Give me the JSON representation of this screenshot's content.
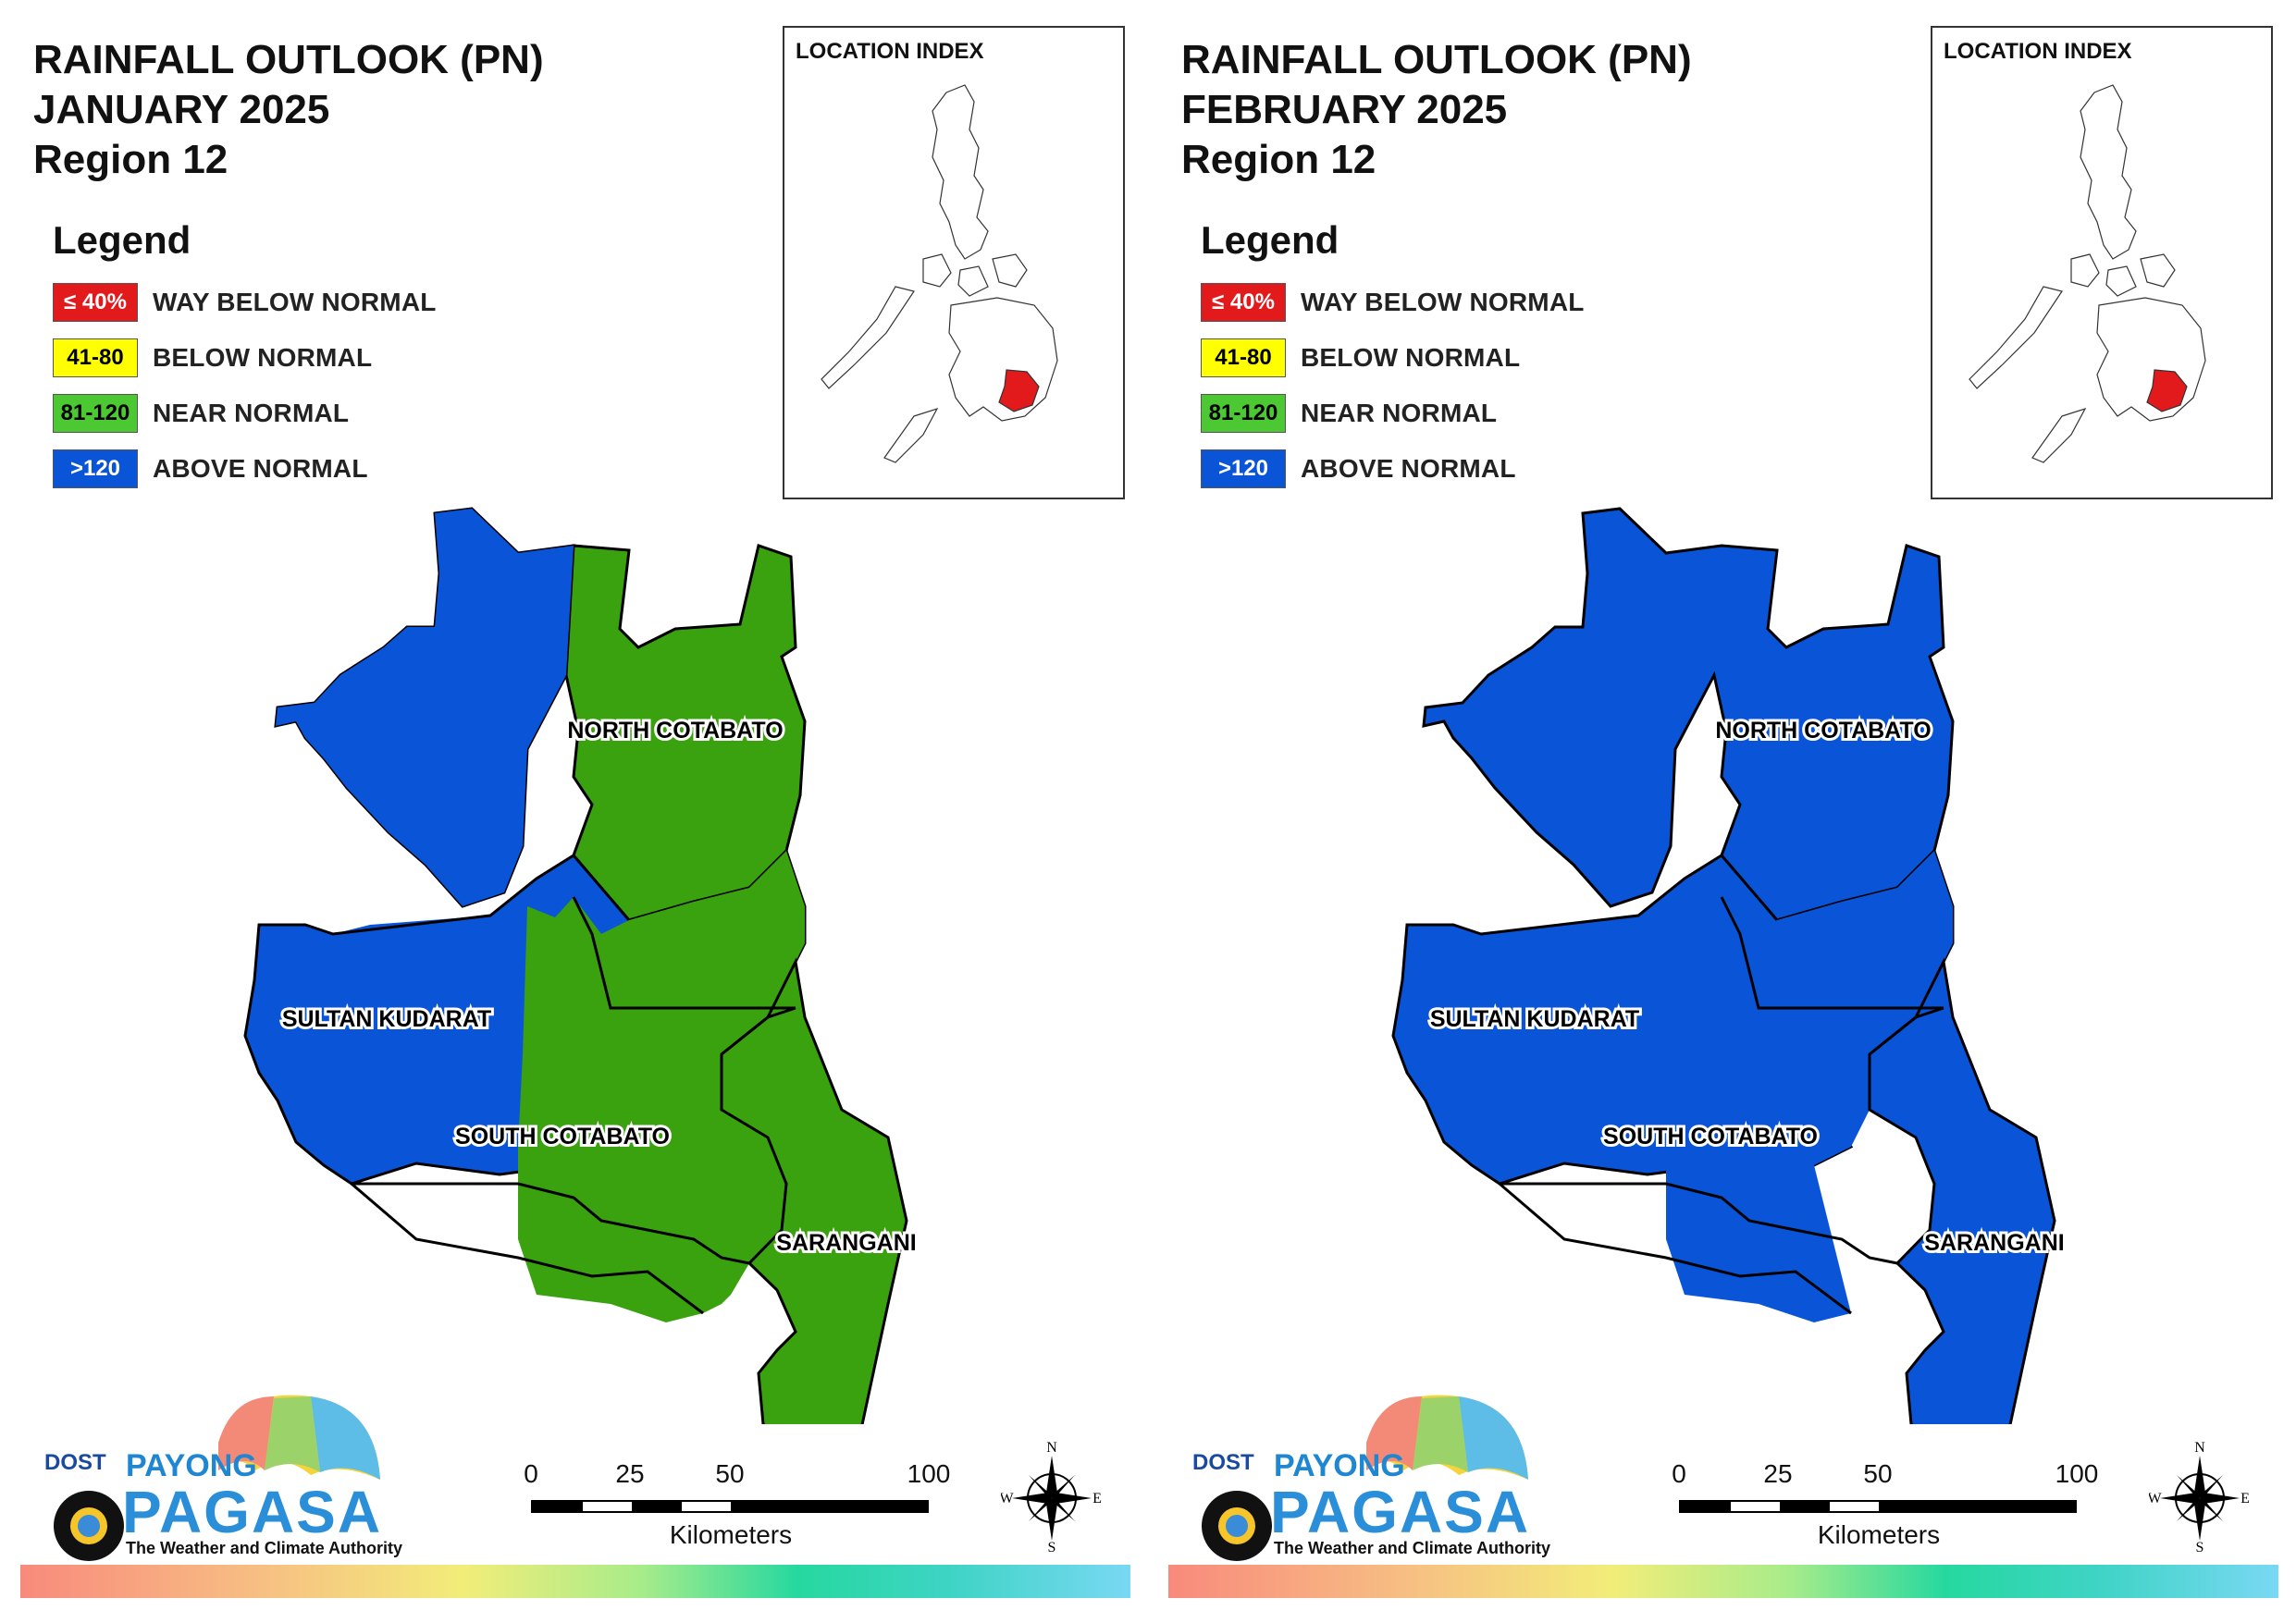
{
  "legend": {
    "title": "Legend",
    "items": [
      {
        "swatch": "≤ 40%",
        "label": "WAY BELOW NORMAL",
        "color": "#e31a1c",
        "text_color": "#ffffff"
      },
      {
        "swatch": "41-80",
        "label": "BELOW NORMAL",
        "color": "#ffff00",
        "text_color": "#000000"
      },
      {
        "swatch": "81-120",
        "label": "NEAR NORMAL",
        "color": "#4cc832",
        "text_color": "#000000"
      },
      {
        "swatch": ">120",
        "label": "ABOVE NORMAL",
        "color": "#0a54d8",
        "text_color": "#ffffff"
      }
    ]
  },
  "location_index": {
    "title": "LOCATION INDEX",
    "highlight_color": "#e31a1c"
  },
  "scale": {
    "ticks": [
      "0",
      "25",
      "50",
      "100"
    ],
    "unit": "Kilometers"
  },
  "compass": {
    "n": "N",
    "s": "S",
    "e": "E",
    "w": "W"
  },
  "logo": {
    "dost": "DOST",
    "payong": "PAYONG",
    "pagasa": "PAGASA",
    "tagline": "The Weather and Climate Authority"
  },
  "region_labels": {
    "north_cotabato": "NORTH COTABATO",
    "sultan_kudarat": "SULTAN KUDARAT",
    "south_cotabato": "SOUTH COTABATO",
    "sarangani": "SARANGANI"
  },
  "colors": {
    "above_normal": "#0a54d8",
    "near_normal": "#3aa10f",
    "boundary": "#000000"
  },
  "maps": [
    {
      "title_line1": "RAINFALL OUTLOOK (PN)",
      "title_line2": "JANUARY 2025",
      "title_line3": "Region 12",
      "categories": {
        "north_cotabato": "81-120 west part >120",
        "sultan_kudarat": ">120",
        "south_cotabato": "81-120 west part >120",
        "sarangani": "81-120"
      }
    },
    {
      "title_line1": "RAINFALL OUTLOOK (PN)",
      "title_line2": "FEBRUARY 2025",
      "title_line3": "Region 12",
      "categories": {
        "north_cotabato": ">120",
        "sultan_kudarat": ">120",
        "south_cotabato": ">120",
        "sarangani": ">120"
      }
    }
  ]
}
